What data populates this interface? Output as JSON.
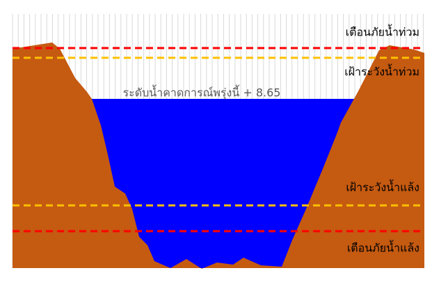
{
  "labels": {
    "flood_warning": "เตือนภัยน้ำท่วม",
    "flood_watch": "เฝ้าระวังน้ำท่วม",
    "forecast_level": "ระดับน้ำคาดการณ์พรุ่งนี้ + 8.65",
    "drought_watch": "เฝ้าระวังน้ำแล้ง",
    "drought_warning": "เตือนภัยน้ำแล้ง"
  }
}
